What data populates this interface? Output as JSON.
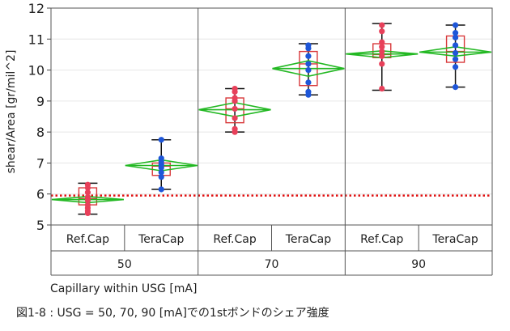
{
  "chart_data": {
    "type": "box",
    "title": "",
    "xlabel": "Capillary within USG [mA]",
    "ylabel": "shear/Area [gr/mil^2]",
    "ylim": [
      5,
      12
    ],
    "yticks": [
      5,
      6,
      7,
      8,
      9,
      10,
      11,
      12
    ],
    "reference_line": 5.95,
    "groups": [
      "50",
      "70",
      "90"
    ],
    "subgroups": [
      "Ref.Cap",
      "TeraCap"
    ],
    "colors": {
      "Ref.Cap": "#e8405a",
      "TeraCap": "#1e56d8",
      "box": "#d8383a",
      "diamond": "#22b822",
      "refline": "#e01010"
    },
    "boxes": [
      {
        "group": "50",
        "cap": "Ref.Cap",
        "min": 5.35,
        "q1": 5.65,
        "median": 5.85,
        "q3": 6.2,
        "max": 6.35,
        "mean": 5.82,
        "ci": [
          5.72,
          5.92
        ],
        "points": [
          5.38,
          5.45,
          5.55,
          5.65,
          5.8,
          5.9,
          6.05,
          6.2,
          6.3
        ]
      },
      {
        "group": "50",
        "cap": "TeraCap",
        "min": 6.15,
        "q1": 6.6,
        "median": 6.9,
        "q3": 7.0,
        "max": 7.75,
        "mean": 6.92,
        "ci": [
          6.75,
          7.1
        ],
        "points": [
          6.15,
          6.55,
          6.7,
          6.85,
          6.95,
          7.05,
          7.15,
          7.75
        ]
      },
      {
        "group": "70",
        "cap": "Ref.Cap",
        "min": 8.0,
        "q1": 8.3,
        "median": 8.75,
        "q3": 9.1,
        "max": 9.4,
        "mean": 8.72,
        "ci": [
          8.5,
          8.95
        ],
        "points": [
          8.0,
          8.1,
          8.45,
          8.75,
          9.0,
          9.1,
          9.3,
          9.4
        ]
      },
      {
        "group": "70",
        "cap": "TeraCap",
        "min": 9.2,
        "q1": 9.5,
        "median": 10.2,
        "q3": 10.6,
        "max": 10.85,
        "mean": 10.05,
        "ci": [
          9.8,
          10.3
        ],
        "points": [
          9.2,
          9.3,
          9.6,
          10.0,
          10.2,
          10.45,
          10.7,
          10.8
        ]
      },
      {
        "group": "90",
        "cap": "Ref.Cap",
        "min": 9.35,
        "q1": 10.4,
        "median": 10.5,
        "q3": 10.85,
        "max": 11.5,
        "mean": 10.52,
        "ci": [
          10.4,
          10.62
        ],
        "points": [
          9.4,
          10.2,
          10.45,
          10.6,
          10.75,
          10.9,
          11.25,
          11.45
        ]
      },
      {
        "group": "90",
        "cap": "TeraCap",
        "min": 9.45,
        "q1": 10.25,
        "median": 10.6,
        "q3": 11.1,
        "max": 11.45,
        "mean": 10.58,
        "ci": [
          10.45,
          10.75
        ],
        "points": [
          9.45,
          10.1,
          10.35,
          10.55,
          10.8,
          11.05,
          11.2,
          11.45
        ]
      }
    ]
  },
  "caption": "図1-8 : USG = 50, 70, 90 [mA]での1stボンドのシェア強度"
}
